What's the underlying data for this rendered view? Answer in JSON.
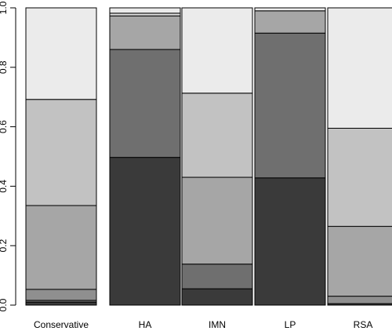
{
  "chart_data": {
    "type": "bar",
    "stacked": true,
    "categories": [
      "Conservative",
      "HA",
      "IMN",
      "LP",
      "RSA"
    ],
    "series": [
      {
        "color": "#3a3a3a",
        "values": [
          0.01,
          0.497,
          0.055,
          0.428,
          0.005
        ]
      },
      {
        "color": "#6f6f6f",
        "values": [
          0.006,
          0.363,
          0.083,
          0.487,
          0.0
        ]
      },
      {
        "color": "#8f8f8f",
        "values": [
          0.037,
          0.0,
          0.0,
          0.0,
          0.025
        ]
      },
      {
        "color": "#a6a6a6",
        "values": [
          0.282,
          0.113,
          0.292,
          0.075,
          0.235
        ]
      },
      {
        "color": "#c2c2c2",
        "values": [
          0.357,
          0.0,
          0.283,
          0.0,
          0.33
        ]
      },
      {
        "color": "#dcdcdc",
        "values": [
          0.0,
          0.009,
          0.0,
          0.0,
          0.0
        ]
      },
      {
        "color": "#ebebeb",
        "values": [
          0.308,
          0.018,
          0.287,
          0.01,
          0.405
        ]
      }
    ],
    "yticks": [
      "0.0",
      "0.2",
      "0.4",
      "0.6",
      "0.8",
      "1.0"
    ],
    "ylim": [
      0,
      1
    ],
    "title": "",
    "xlabel": "",
    "ylabel": "",
    "legend": "none",
    "grid": false
  }
}
